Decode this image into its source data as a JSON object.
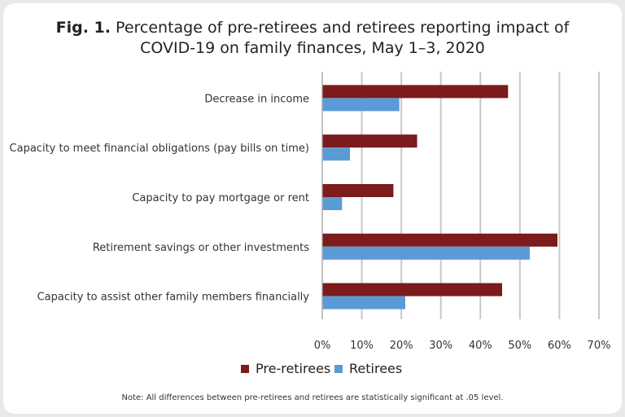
{
  "title": {
    "fig_label": "Fig. 1.",
    "line1": "Percentage of pre-retirees and retirees reporting impact of",
    "line2": "COVID-19 on family finances, May 1–3, 2020"
  },
  "note": "Note: All differences between pre-retirees and retirees are statistically significant at .05 level.",
  "chart_data": {
    "type": "bar",
    "orientation": "horizontal",
    "categories": [
      "Decrease in income",
      "Capacity to meet financial obligations (pay bills on time)",
      "Capacity to pay mortgage or rent",
      "Retirement savings or other investments",
      "Capacity to assist other family members financially"
    ],
    "series": [
      {
        "name": "Pre-retirees",
        "color": "#7b1b1b",
        "values": [
          47,
          24,
          18,
          59.5,
          45.5
        ]
      },
      {
        "name": "Retirees",
        "color": "#5b9bd5",
        "values": [
          19.5,
          7,
          5,
          52.5,
          21
        ]
      }
    ],
    "xlim": [
      0,
      70
    ],
    "xticks": [
      0,
      10,
      20,
      30,
      40,
      50,
      60,
      70
    ],
    "xtick_labels": [
      "0%",
      "10%",
      "20%",
      "30%",
      "40%",
      "50%",
      "60%",
      "70%"
    ],
    "grid": "vertical",
    "legend": "bottom"
  }
}
